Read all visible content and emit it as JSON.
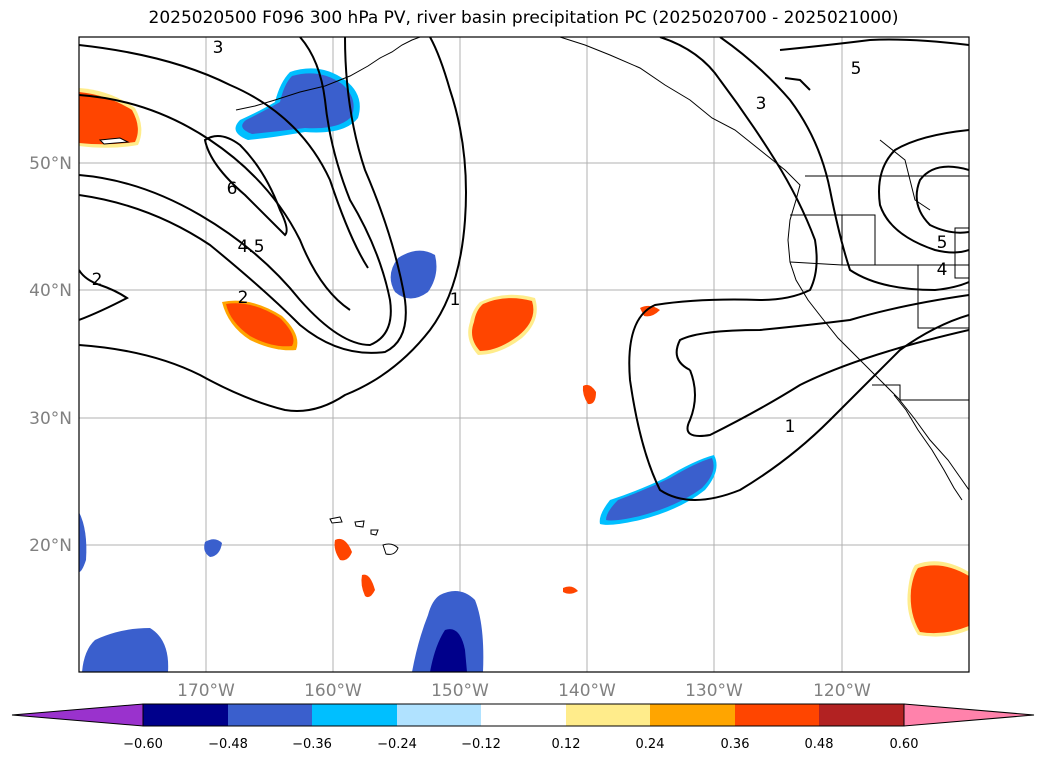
{
  "title": "2025020500 F096 300 hPa PV, river basin precipitation PC (2025020700 - 2025021000)",
  "lon_labels": [
    "170°W",
    "160°W",
    "150°W",
    "140°W",
    "130°W",
    "120°W"
  ],
  "lat_labels": [
    "50°N",
    "40°N",
    "30°N",
    "20°N"
  ],
  "contour_labels": [
    "3",
    "5",
    "3",
    "6",
    "4.5",
    "2",
    "2",
    "1",
    "1",
    "5",
    "4"
  ],
  "colorbar": {
    "colors": [
      "#9a32cd",
      "#00008b",
      "#3a5fcd",
      "#00bfff",
      "#b0e2ff",
      "#ffffff",
      "#ffec8b",
      "#ffa500",
      "#ff4500",
      "#b22222",
      "#ff82ab"
    ],
    "ticks": [
      "−0.60",
      "−0.48",
      "−0.36",
      "−0.24",
      "−0.12",
      "0.12",
      "0.24",
      "0.36",
      "0.48",
      "0.60"
    ]
  }
}
